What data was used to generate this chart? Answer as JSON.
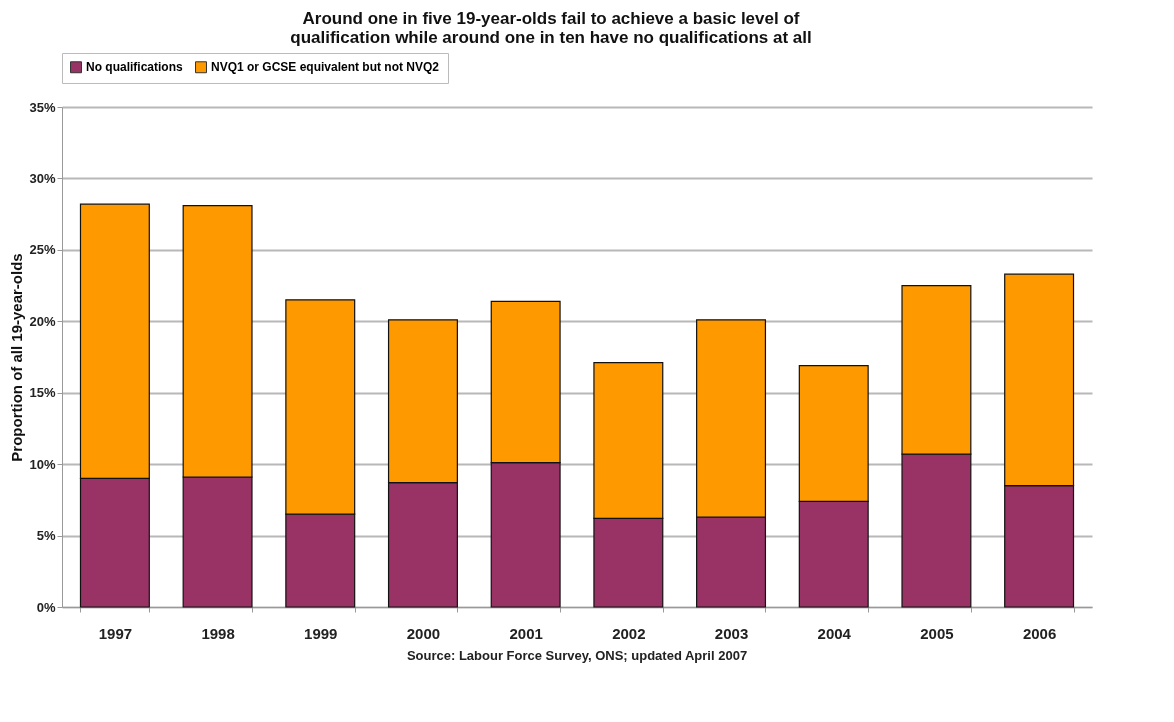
{
  "chart_data": {
    "type": "bar",
    "title": "Around one in five 19-year-olds fail to achieve a basic level of qualification while around one in ten have no qualifications at all",
    "ylabel": "Proportion of all 19-year-olds",
    "categories": [
      "1997",
      "1998",
      "1999",
      "2000",
      "2001",
      "2002",
      "2003",
      "2004",
      "2005",
      "2006"
    ],
    "stacked": true,
    "series": [
      {
        "name": "No qualifications",
        "color": "#993366",
        "values": [
          9.0,
          9.1,
          6.5,
          8.7,
          10.1,
          6.2,
          6.3,
          7.4,
          10.7,
          8.5
        ]
      },
      {
        "name": "NVQ1 or GCSE equivalent but not NVQ2",
        "color": "#ff9900",
        "values": [
          19.2,
          19.0,
          15.0,
          11.4,
          11.3,
          10.9,
          13.8,
          9.5,
          11.8,
          14.8
        ]
      }
    ],
    "ylim": [
      0,
      35
    ],
    "yticks": [
      {
        "value": 0,
        "label": "0%"
      },
      {
        "value": 5,
        "label": "5%"
      },
      {
        "value": 10,
        "label": "10%"
      },
      {
        "value": 15,
        "label": "15%"
      },
      {
        "value": 20,
        "label": "20%"
      },
      {
        "value": 25,
        "label": "25%"
      },
      {
        "value": 30,
        "label": "30%"
      },
      {
        "value": 35,
        "label": "35%"
      }
    ],
    "grid": "y",
    "legend": "top",
    "annotations": [
      "Source: Labour Force Survey, ONS; updated April 2007"
    ]
  }
}
